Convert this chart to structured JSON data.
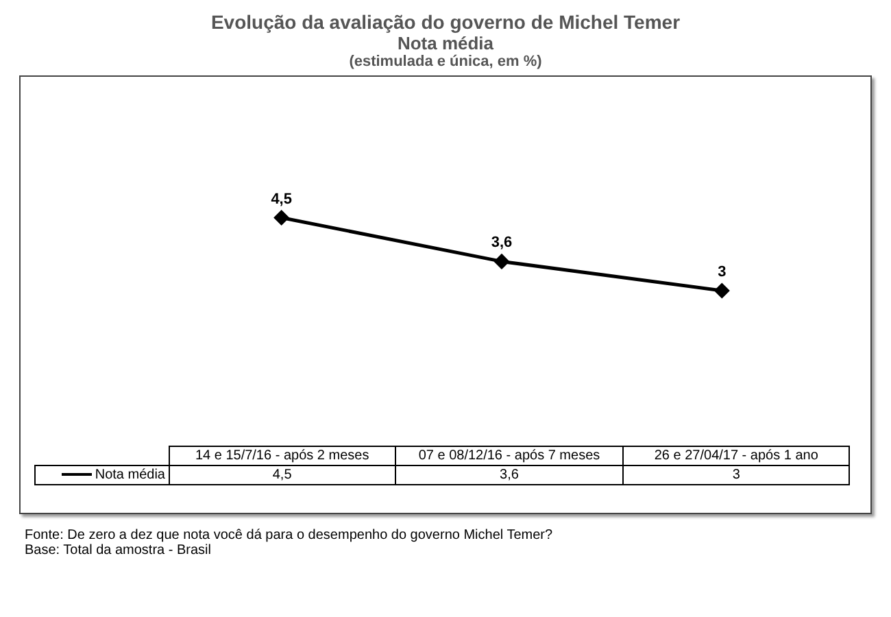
{
  "chart_data": {
    "type": "line",
    "title": "Evolução da avaliação do governo de Michel Temer",
    "subtitle": "Nota média",
    "categories": [
      "14 e 15/7/16 - após 2 meses",
      "07 e 08/12/16 - após 7 meses",
      "26 e 27/04/17 - após 1 ano"
    ],
    "series": [
      {
        "name": "Nota média",
        "color": "#000000",
        "values": [
          4.5,
          3.6,
          3
        ],
        "value_labels": [
          "4,5",
          "3,6",
          "3"
        ]
      }
    ],
    "marker": "diamond",
    "line_style": "solid",
    "legend": "bottom",
    "tick_labels": false,
    "grid": false,
    "annotations": [
      "(estimulada e única, em %)",
      "Fonte: De zero a dez que nota você dá para o desempenho do governo Michel Temer?",
      "Base: Total da amostra - Brasil"
    ]
  }
}
